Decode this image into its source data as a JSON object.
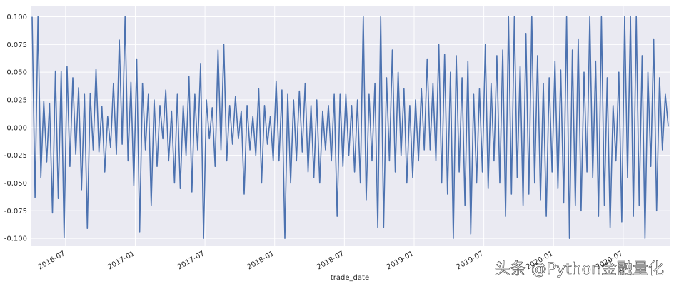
{
  "chart_data": {
    "type": "line",
    "xlabel": "trade_date",
    "watermark": "头条 @Python金融量化",
    "x": [
      "2016-04",
      "2016-05",
      "2016-06",
      "2016-07",
      "2016-08",
      "2016-09",
      "2016-10",
      "2016-11",
      "2016-12",
      "2017-01",
      "2017-02",
      "2017-03",
      "2017-04",
      "2017-05",
      "2017-06",
      "2017-07",
      "2017-08",
      "2017-09",
      "2017-10",
      "2017-11",
      "2017-12",
      "2018-01",
      "2018-02",
      "2018-03",
      "2018-04",
      "2018-05",
      "2018-06",
      "2018-07",
      "2018-08",
      "2018-09",
      "2018-10",
      "2018-11",
      "2018-12",
      "2019-01",
      "2019-02",
      "2019-03",
      "2019-04",
      "2019-05",
      "2019-06",
      "2019-07",
      "2019-08",
      "2019-09",
      "2019-10",
      "2019-11",
      "2019-12",
      "2020-01",
      "2020-02",
      "2020-03",
      "2020-04",
      "2020-05",
      "2020-06",
      "2020-07",
      "2020-08",
      "2020-09",
      "2020-10"
    ],
    "series": [
      {
        "color": "#4c72b0",
        "values": [
          [
            0.1,
            -0.063,
            0.1,
            -0.045
          ],
          [
            0.024,
            -0.031,
            0.022,
            -0.077
          ],
          [
            0.051,
            -0.064,
            0.051,
            -0.099
          ],
          [
            0.055,
            -0.035,
            0.045,
            -0.024
          ],
          [
            0.036,
            -0.056,
            0.03,
            -0.091
          ],
          [
            0.031,
            -0.02,
            0.053,
            -0.022
          ],
          [
            0.019,
            -0.04,
            0.01,
            -0.018
          ],
          [
            0.04,
            -0.024,
            0.079,
            -0.015
          ],
          [
            0.1,
            -0.03,
            0.041,
            -0.052
          ],
          [
            0.062,
            -0.094,
            0.04,
            -0.02
          ],
          [
            0.03,
            -0.07,
            0.025,
            -0.035
          ],
          [
            0.02,
            -0.01,
            0.034,
            -0.03
          ],
          [
            0.015,
            -0.05,
            0.03,
            -0.055
          ],
          [
            0.02,
            -0.025,
            0.046,
            -0.058
          ],
          [
            0.03,
            -0.02,
            0.058,
            -0.1
          ],
          [
            0.025,
            -0.01,
            0.018,
            -0.035
          ],
          [
            0.07,
            -0.02,
            0.075,
            -0.03
          ],
          [
            0.02,
            -0.015,
            0.028,
            -0.01
          ],
          [
            0.015,
            -0.06,
            0.02,
            -0.02
          ],
          [
            0.01,
            -0.025,
            0.035,
            -0.05
          ],
          [
            0.02,
            -0.015,
            0.01,
            -0.03
          ],
          [
            0.042,
            -0.03,
            0.034,
            -0.1
          ],
          [
            0.03,
            -0.05,
            0.025,
            -0.03
          ],
          [
            0.033,
            -0.022,
            0.04,
            -0.04
          ],
          [
            0.02,
            -0.045,
            0.025,
            -0.05
          ],
          [
            0.015,
            -0.02,
            0.02,
            -0.03
          ],
          [
            0.03,
            -0.08,
            0.03,
            -0.035
          ],
          [
            0.03,
            -0.025,
            0.02,
            -0.04
          ],
          [
            0.025,
            -0.05,
            0.1,
            -0.065
          ],
          [
            0.03,
            -0.03,
            0.04,
            -0.09
          ],
          [
            0.1,
            -0.09,
            0.045,
            -0.03
          ],
          [
            0.07,
            -0.04,
            0.05,
            -0.025
          ],
          [
            0.035,
            -0.05,
            0.02,
            -0.045
          ],
          [
            0.025,
            -0.03,
            0.035,
            -0.02
          ],
          [
            0.062,
            -0.02,
            0.04,
            -0.03
          ],
          [
            0.075,
            -0.05,
            0.066,
            -0.06
          ],
          [
            0.05,
            -0.1,
            0.065,
            -0.04
          ],
          [
            0.045,
            -0.07,
            0.06,
            -0.096
          ],
          [
            0.03,
            -0.05,
            0.035,
            -0.04
          ],
          [
            0.075,
            -0.055,
            0.04,
            -0.03
          ],
          [
            0.065,
            -0.05,
            0.07,
            -0.08
          ],
          [
            0.1,
            -0.06,
            0.1,
            -0.045
          ],
          [
            0.055,
            -0.07,
            0.085,
            -0.06
          ],
          [
            0.1,
            -0.05,
            0.065,
            -0.065
          ],
          [
            0.04,
            -0.08,
            0.045,
            -0.04
          ],
          [
            0.06,
            -0.055,
            0.052,
            -0.068
          ],
          [
            0.1,
            -0.1,
            0.07,
            -0.07
          ],
          [
            0.08,
            -0.075,
            0.05,
            -0.04
          ],
          [
            0.1,
            -0.045,
            0.06,
            -0.08
          ],
          [
            0.1,
            -0.07,
            0.045,
            -0.09
          ],
          [
            0.02,
            -0.03,
            0.05,
            -0.085
          ],
          [
            0.1,
            -0.045,
            0.1,
            -0.08
          ],
          [
            0.1,
            -0.07,
            0.065,
            -0.1
          ],
          [
            0.05,
            -0.035,
            0.08,
            -0.075
          ],
          [
            0.045,
            -0.02,
            0.03,
            0.001
          ]
        ]
      }
    ],
    "xlim": [
      "2016-04",
      "2020-11"
    ],
    "xticks": [
      "2016-07",
      "2017-01",
      "2017-07",
      "2018-01",
      "2018-07",
      "2019-01",
      "2019-07",
      "2020-01",
      "2020-07"
    ],
    "ylim": [
      -0.107,
      0.11
    ],
    "yticks": [
      {
        "value": 0.1,
        "label": "0.100"
      },
      {
        "value": 0.075,
        "label": "0.075"
      },
      {
        "value": 0.05,
        "label": "0.050"
      },
      {
        "value": 0.025,
        "label": "0.025"
      },
      {
        "value": 0,
        "label": "0.000"
      },
      {
        "value": -0.025,
        "label": "-0.025"
      },
      {
        "value": -0.05,
        "label": "-0.050"
      },
      {
        "value": -0.075,
        "label": "-0.075"
      },
      {
        "value": -0.1,
        "label": "-0.100"
      }
    ],
    "grid": true
  }
}
